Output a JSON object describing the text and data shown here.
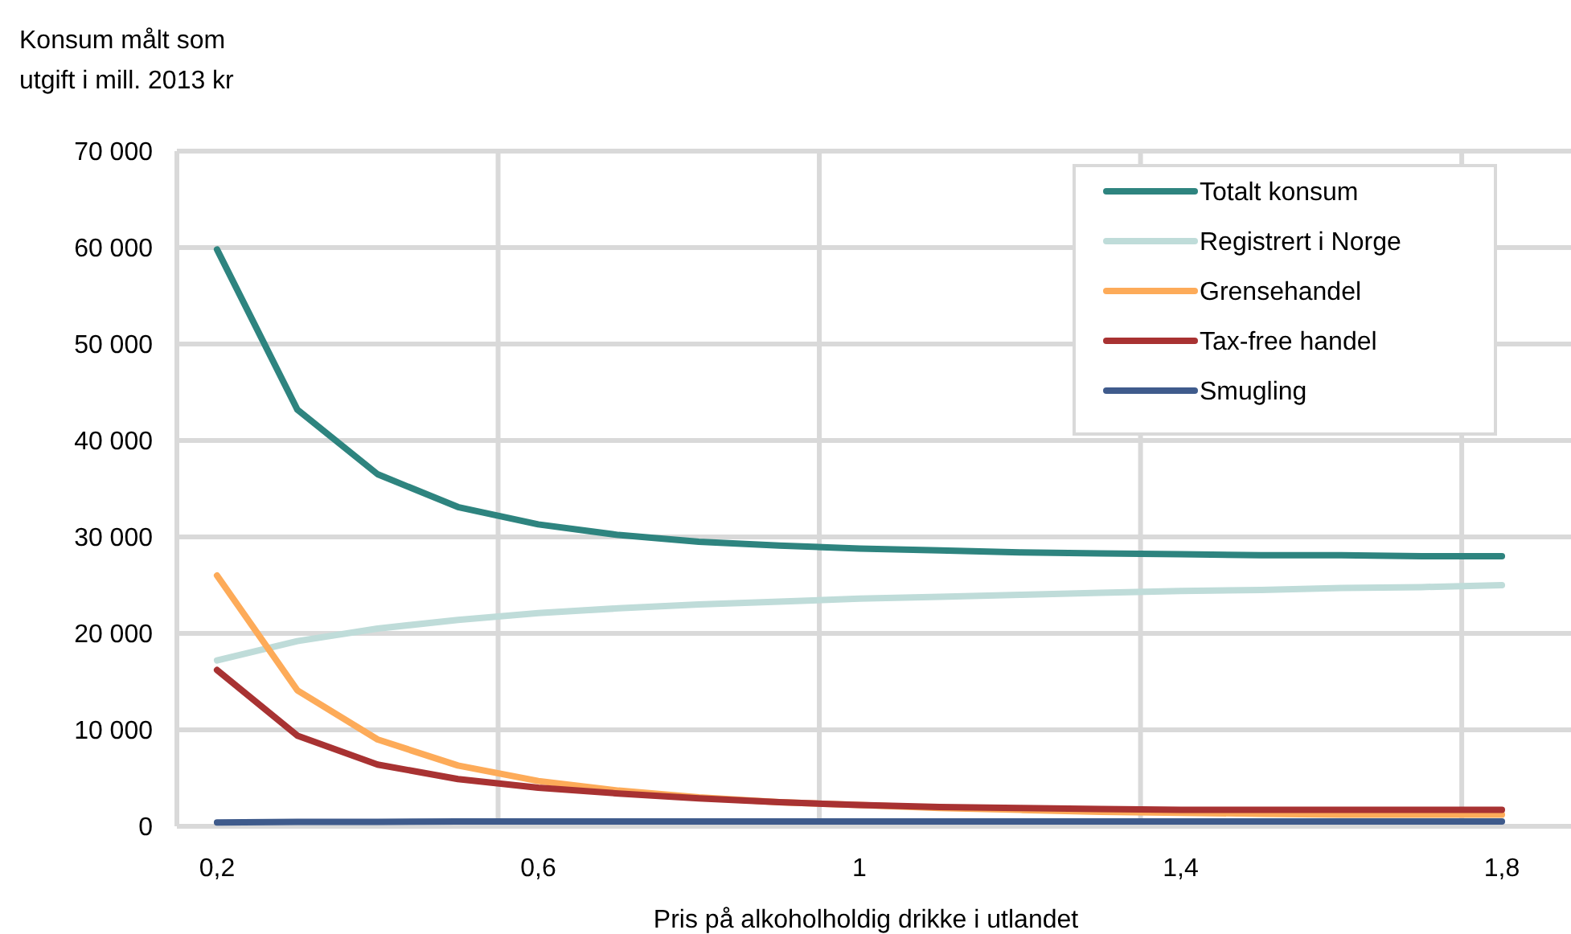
{
  "chart_data": {
    "type": "line",
    "xlabel": "Pris på alkoholholdig drikke i utlandet",
    "ylabel": "Konsum målt som\nutgift i mill. 2013 kr",
    "categories": [
      "0,2",
      null,
      null,
      null,
      "0,6",
      null,
      null,
      null,
      "1",
      null,
      null,
      null,
      "1,4",
      null,
      null,
      null,
      "1,8"
    ],
    "series": [
      {
        "name": "Totalt konsum",
        "color": "#2e847f",
        "values": [
          59800,
          43200,
          36500,
          33100,
          31300,
          30200,
          29500,
          29100,
          28800,
          28600,
          28400,
          28300,
          28200,
          28100,
          28100,
          28000,
          28000
        ]
      },
      {
        "name": "Registrert i Norge",
        "color": "#bfdcd9",
        "values": [
          17200,
          19200,
          20500,
          21400,
          22100,
          22600,
          23000,
          23300,
          23600,
          23800,
          24000,
          24200,
          24400,
          24500,
          24700,
          24800,
          25000
        ]
      },
      {
        "name": "Grensehandel",
        "color": "#fdab59",
        "values": [
          26000,
          14100,
          9000,
          6300,
          4700,
          3700,
          3000,
          2500,
          2200,
          1900,
          1700,
          1500,
          1400,
          1300,
          1200,
          1200,
          1200
        ]
      },
      {
        "name": "Tax-free handel",
        "color": "#a83232",
        "values": [
          16200,
          9400,
          6400,
          4900,
          4000,
          3400,
          2900,
          2500,
          2200,
          2000,
          1900,
          1800,
          1700,
          1700,
          1700,
          1700,
          1700
        ]
      },
      {
        "name": "Smugling",
        "color": "#3f5b8c",
        "values": [
          400,
          450,
          450,
          500,
          500,
          500,
          500,
          500,
          500,
          500,
          500,
          500,
          500,
          500,
          500,
          500,
          500
        ]
      }
    ],
    "ylim": [
      0,
      70000
    ],
    "yticks": [
      0,
      {
        "value": 10000,
        "label": "10 000"
      },
      {
        "value": 20000,
        "label": "20 000"
      },
      {
        "value": 30000,
        "label": "30 000"
      },
      {
        "value": 40000,
        "label": "40 000"
      },
      {
        "value": 50000,
        "label": "50 000"
      },
      {
        "value": 60000,
        "label": "60 000"
      },
      {
        "value": 70000,
        "label": "70 000"
      }
    ],
    "grid": true,
    "legend": "top right",
    "marker": "none",
    "line_style": "solid"
  }
}
